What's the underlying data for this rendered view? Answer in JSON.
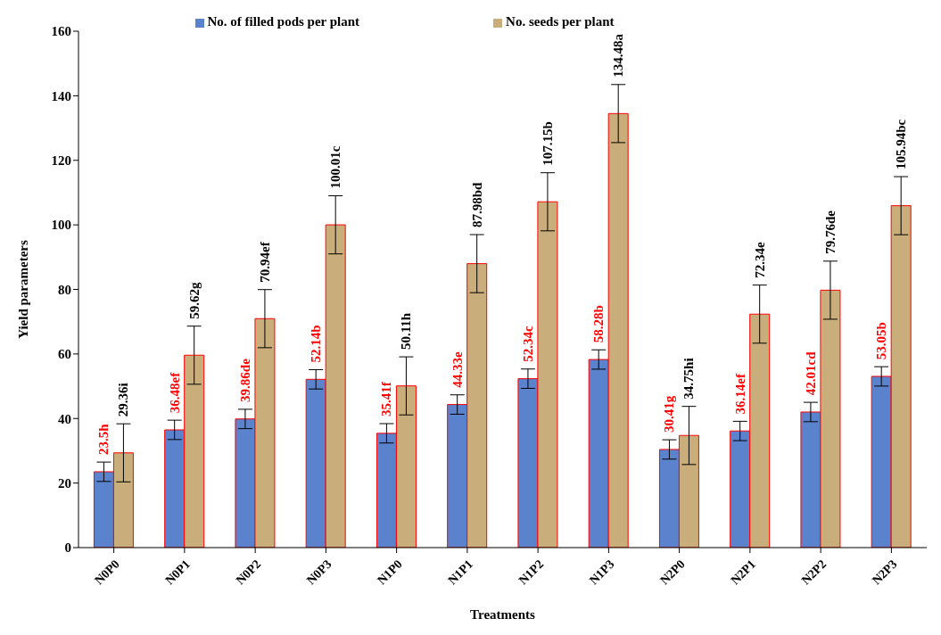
{
  "chart_data": {
    "type": "bar",
    "xlabel": "Treatments",
    "ylabel": "Yield parameters",
    "categories": [
      "N0P0",
      "N0P1",
      "N0P2",
      "N0P3",
      "N1P0",
      "N1P1",
      "N1P2",
      "N1P3",
      "N2P0",
      "N2P1",
      "N2P2",
      "N2P3"
    ],
    "series": [
      {
        "name": "No. of filled pods per plant",
        "color": "#5b82cc",
        "values": [
          23.5,
          36.48,
          39.86,
          52.14,
          35.41,
          44.33,
          52.34,
          58.28,
          30.41,
          36.14,
          42.01,
          53.05
        ],
        "errors": [
          3,
          3,
          3,
          3,
          3,
          3,
          3,
          3,
          3,
          3,
          3,
          3
        ],
        "value_labels": [
          "23.5h",
          "36.48ef",
          "39.86de",
          "52.14b",
          "35.41f",
          "44.33e",
          "52.34c",
          "58.28b",
          "30.41g",
          "36.14ef",
          "42.01cd",
          "53.05b"
        ]
      },
      {
        "name": "No. seeds per plant",
        "color": "#c9ad7a",
        "values": [
          29.36,
          59.62,
          70.94,
          100.01,
          50.11,
          87.98,
          107.15,
          134.48,
          34.75,
          72.34,
          79.76,
          105.94
        ],
        "errors": [
          9,
          9,
          9,
          9,
          9,
          9,
          9,
          9,
          9,
          9,
          9,
          9
        ],
        "value_labels": [
          "29.36i",
          "59.62g",
          "70.94ef",
          "100.01c",
          "50.11h",
          "87.98bd",
          "107.15b",
          "134.48a",
          "34.75hi",
          "72.34e",
          "79.76de",
          "105.94bc"
        ]
      }
    ],
    "ylim": [
      0,
      160
    ],
    "yticks": [
      0,
      20,
      40,
      60,
      80,
      100,
      120,
      140,
      160
    ],
    "legend": "top"
  }
}
